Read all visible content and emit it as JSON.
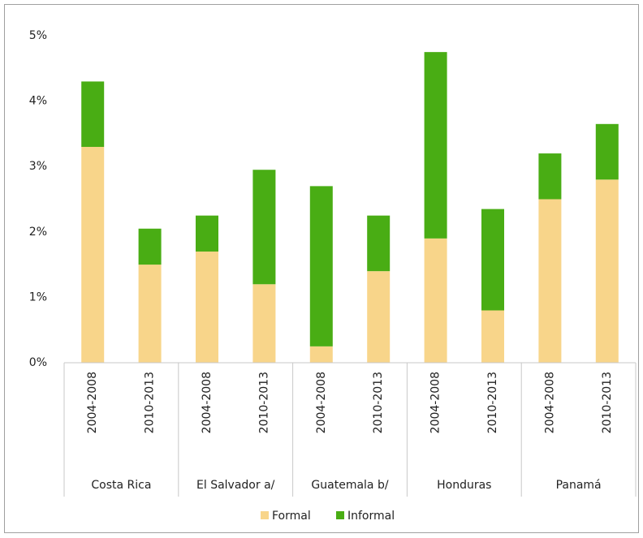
{
  "chart_data": {
    "type": "stacked_bar",
    "categories": [
      "2004-2008",
      "2010-2013",
      "2004-2008",
      "2010-2013",
      "2004-2008",
      "2010-2013",
      "2004-2008",
      "2010-2013",
      "2004-2008",
      "2010-2013"
    ],
    "groups": [
      "Costa Rica",
      "El Salvador a/",
      "Guatemala b/",
      "Honduras",
      "Panamá"
    ],
    "series": [
      {
        "name": "Formal",
        "color": "#f8d58a",
        "values": [
          3.3,
          1.5,
          1.7,
          1.2,
          0.25,
          1.4,
          1.9,
          0.8,
          2.5,
          2.8
        ]
      },
      {
        "name": "Informal",
        "color": "#49ad14",
        "values": [
          1.0,
          0.55,
          0.55,
          1.75,
          2.45,
          0.85,
          2.85,
          1.55,
          0.7,
          0.85
        ]
      }
    ],
    "ylim": [
      0,
      5
    ],
    "yticks": [
      {
        "value": 0,
        "label": "0%"
      },
      {
        "value": 1,
        "label": "1%"
      },
      {
        "value": 2,
        "label": "2%"
      },
      {
        "value": 3,
        "label": "3%"
      },
      {
        "value": 4,
        "label": "4%"
      },
      {
        "value": 5,
        "label": "5%"
      }
    ],
    "legend": "bottom"
  }
}
